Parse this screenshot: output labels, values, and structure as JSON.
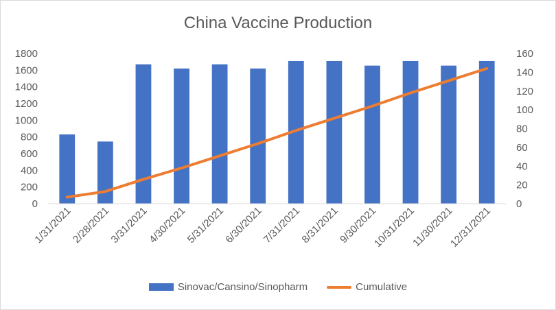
{
  "chart_data": {
    "type": "bar",
    "title": "China Vaccine Production",
    "xlabel": "",
    "ylabel": "",
    "categories": [
      "1/31/2021",
      "2/28/2021",
      "3/31/2021",
      "4/30/2021",
      "5/31/2021",
      "6/30/2021",
      "7/31/2021",
      "8/31/2021",
      "9/30/2021",
      "10/31/2021",
      "11/30/2021",
      "12/31/2021"
    ],
    "series": [
      {
        "name": "Sinovac/Cansino/Sinopharm",
        "type": "bar",
        "axis": "left",
        "color": "#4472C4",
        "values": [
          830,
          745,
          1670,
          1620,
          1670,
          1620,
          1710,
          1710,
          1655,
          1710,
          1655,
          1710
        ]
      },
      {
        "name": "Cumulative",
        "type": "line",
        "axis": "right",
        "color": "#ED7D31",
        "values": [
          7,
          13,
          26,
          38,
          51,
          64,
          78,
          91,
          104,
          118,
          131,
          144
        ]
      }
    ],
    "ylim": [
      0,
      1800
    ],
    "yticks": [
      0,
      200,
      400,
      600,
      800,
      1000,
      1200,
      1400,
      1600,
      1800
    ],
    "y2lim": [
      0,
      160
    ],
    "y2ticks": [
      0,
      20,
      40,
      60,
      80,
      100,
      120,
      140,
      160
    ],
    "grid": false,
    "legend_position": "bottom"
  }
}
